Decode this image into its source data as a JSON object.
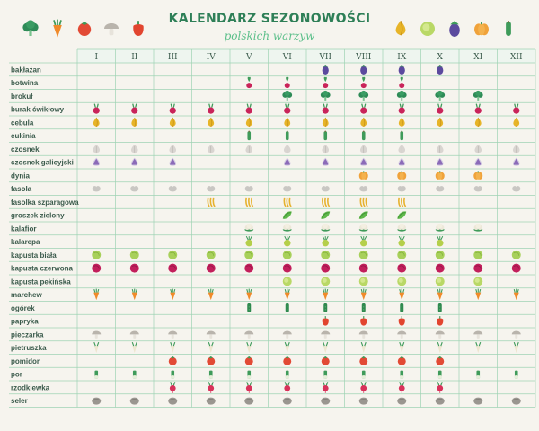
{
  "header": {
    "title": "KALENDARZ SEZONOWOŚCI",
    "subtitle": "polskich warzyw"
  },
  "months": [
    "I",
    "II",
    "III",
    "IV",
    "V",
    "VI",
    "VII",
    "VIII",
    "IX",
    "X",
    "XI",
    "XII"
  ],
  "rows": [
    {
      "label": "bakłażan",
      "icon": "eggplant",
      "months": [
        7,
        8,
        9,
        10
      ]
    },
    {
      "label": "botwina",
      "icon": "beet-leaf",
      "months": [
        5,
        6,
        7,
        8,
        9
      ]
    },
    {
      "label": "brokuł",
      "icon": "broccoli",
      "months": [
        6,
        7,
        8,
        9,
        10,
        11
      ]
    },
    {
      "label": "burak ćwikłowy",
      "icon": "beet",
      "months": [
        1,
        2,
        3,
        4,
        5,
        6,
        7,
        8,
        9,
        10,
        11,
        12
      ]
    },
    {
      "label": "cebula",
      "icon": "onion",
      "months": [
        1,
        2,
        3,
        4,
        5,
        6,
        7,
        8,
        9,
        10,
        11,
        12
      ]
    },
    {
      "label": "cukinia",
      "icon": "zucchini",
      "months": [
        5,
        6,
        7,
        8,
        9
      ]
    },
    {
      "label": "czosnek",
      "icon": "garlic",
      "months": [
        1,
        2,
        3,
        4,
        5,
        6,
        7,
        8,
        9,
        10,
        11,
        12
      ]
    },
    {
      "label": "czosnek galicyjski",
      "icon": "purple-garlic",
      "months": [
        1,
        2,
        3,
        6,
        7,
        8,
        9,
        10,
        11,
        12
      ]
    },
    {
      "label": "dynia",
      "icon": "pumpkin",
      "months": [
        8,
        9,
        10,
        11
      ]
    },
    {
      "label": "fasola",
      "icon": "bean",
      "months": [
        1,
        2,
        3,
        4,
        5,
        6,
        7,
        8,
        9,
        10,
        11,
        12
      ]
    },
    {
      "label": "fasolka szparagowa",
      "icon": "green-bean",
      "months": [
        4,
        5,
        6,
        7,
        8,
        9
      ]
    },
    {
      "label": "groszek zielony",
      "icon": "pea",
      "months": [
        6,
        7,
        8,
        9
      ]
    },
    {
      "label": "kalafior",
      "icon": "cauliflower",
      "months": [
        5,
        6,
        7,
        8,
        9,
        10,
        11
      ]
    },
    {
      "label": "kalarepa",
      "icon": "kohlrabi",
      "months": [
        5,
        6,
        7,
        8,
        9,
        10
      ]
    },
    {
      "label": "kapusta biała",
      "icon": "white-cabbage",
      "months": [
        1,
        2,
        3,
        4,
        5,
        6,
        7,
        8,
        9,
        10,
        11,
        12
      ]
    },
    {
      "label": "kapusta czerwona",
      "icon": "red-cabbage",
      "months": [
        1,
        2,
        3,
        4,
        5,
        6,
        7,
        8,
        9,
        10,
        11,
        12
      ]
    },
    {
      "label": "kapusta pekińska",
      "icon": "chinese-cabbage",
      "months": [
        6,
        7,
        8,
        9,
        10,
        11
      ]
    },
    {
      "label": "marchew",
      "icon": "carrot",
      "months": [
        1,
        2,
        3,
        4,
        5,
        6,
        7,
        8,
        9,
        10,
        11,
        12
      ]
    },
    {
      "label": "ogórek",
      "icon": "cucumber",
      "months": [
        5,
        6,
        7,
        8,
        9,
        10
      ]
    },
    {
      "label": "papryka",
      "icon": "pepper",
      "months": [
        7,
        8,
        9,
        10
      ]
    },
    {
      "label": "pieczarka",
      "icon": "mushroom",
      "months": [
        1,
        2,
        3,
        4,
        5,
        6,
        7,
        8,
        9,
        10,
        11,
        12
      ]
    },
    {
      "label": "pietruszka",
      "icon": "parsley-root",
      "months": [
        1,
        2,
        3,
        4,
        5,
        6,
        7,
        8,
        9,
        10,
        11,
        12
      ]
    },
    {
      "label": "pomidor",
      "icon": "tomato",
      "months": [
        3,
        4,
        5,
        6,
        7,
        8,
        9,
        10
      ]
    },
    {
      "label": "por",
      "icon": "leek",
      "months": [
        1,
        2,
        3,
        4,
        5,
        6,
        7,
        8,
        9,
        10,
        11,
        12
      ]
    },
    {
      "label": "rzodkiewka",
      "icon": "radish",
      "months": [
        3,
        4,
        5,
        6,
        7,
        8,
        9,
        10
      ]
    },
    {
      "label": "seler",
      "icon": "celeriac",
      "months": [
        1,
        2,
        3,
        4,
        5,
        6,
        7,
        8,
        9,
        10,
        11,
        12
      ]
    }
  ],
  "decorations_left": [
    "broccoli",
    "carrot",
    "tomato",
    "mushroom",
    "pepper"
  ],
  "decorations_right": [
    "onion",
    "chinese-cabbage",
    "eggplant",
    "pumpkin",
    "zucchini"
  ],
  "colors": {
    "background": "#f6f4ee",
    "header_band": "#eef5ef",
    "grid_line": "#9fd3b4",
    "title": "#2e7f57",
    "subtitle": "#5cbf8a",
    "label": "#3b5b4c"
  }
}
